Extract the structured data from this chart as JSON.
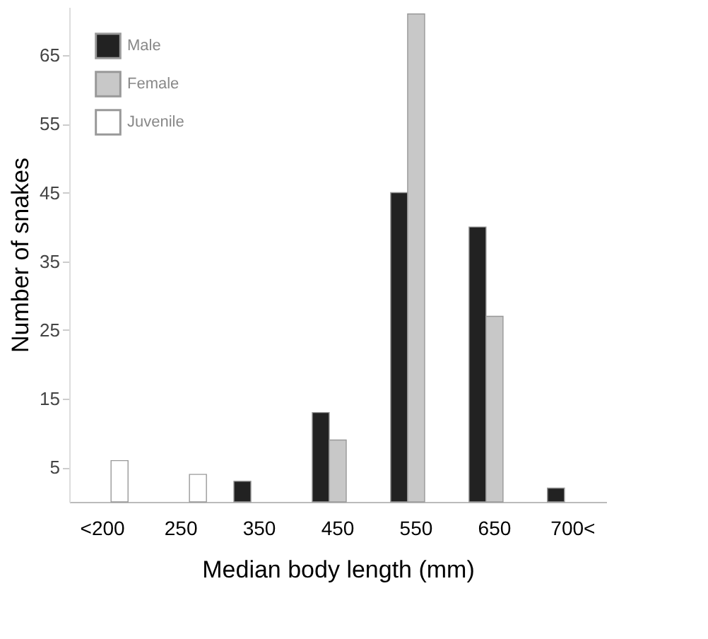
{
  "chart_data": {
    "type": "bar",
    "xlabel": "Median body length (mm)",
    "ylabel": "Number of snakes",
    "categories": [
      "<200",
      "250",
      "350",
      "450",
      "550",
      "650",
      "700<"
    ],
    "series": [
      {
        "name": "Male",
        "color": "#222222",
        "values": [
          null,
          null,
          3,
          13,
          45,
          40,
          2
        ]
      },
      {
        "name": "Female",
        "color": "#c8c8c8",
        "values": [
          null,
          null,
          null,
          9,
          71,
          27,
          null
        ]
      },
      {
        "name": "Juvenile",
        "color": "#ffffff",
        "values": [
          6,
          4,
          null,
          null,
          null,
          null,
          null
        ]
      }
    ],
    "ylim": [
      0,
      72
    ],
    "yticks": [
      5,
      15,
      25,
      35,
      45,
      55,
      65
    ],
    "grid": false,
    "legend": "top left"
  }
}
